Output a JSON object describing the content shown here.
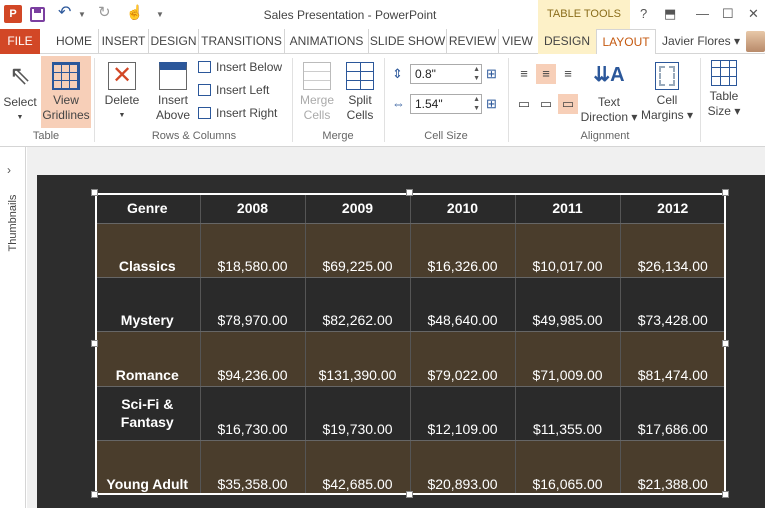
{
  "titlebar": {
    "doc_title": "Sales Presentation - PowerPoint",
    "context_banner": "TABLE TOOLS",
    "help": "?",
    "app_icon": "P"
  },
  "tabs": [
    "FILE",
    "HOME",
    "INSERT",
    "DESIGN",
    "TRANSITIONS",
    "ANIMATIONS",
    "SLIDE SHOW",
    "REVIEW",
    "VIEW"
  ],
  "context_tabs": [
    "DESIGN",
    "LAYOUT"
  ],
  "user": {
    "name": "Javier Flores"
  },
  "ribbon": {
    "table_group": {
      "label": "Table",
      "select": "Select",
      "view_gridlines": [
        "View",
        "Gridlines"
      ]
    },
    "rows_cols_group": {
      "label": "Rows & Columns",
      "delete": "Delete",
      "insert_above": [
        "Insert",
        "Above"
      ],
      "insert_below": "Insert Below",
      "insert_left": "Insert Left",
      "insert_right": "Insert Right"
    },
    "merge_group": {
      "label": "Merge",
      "merge_cells": [
        "Merge",
        "Cells"
      ],
      "split_cells": [
        "Split",
        "Cells"
      ]
    },
    "cell_size_group": {
      "label": "Cell Size",
      "height": "0.8\"",
      "width": "1.54\""
    },
    "alignment_group": {
      "label": "Alignment",
      "text_direction": [
        "Text",
        "Direction"
      ],
      "cell_margins": [
        "Cell",
        "Margins"
      ]
    },
    "table_size": [
      "Table",
      "Size"
    ]
  },
  "thumbnails_label": "Thumbnails",
  "table": {
    "headers": [
      "Genre",
      "2008",
      "2009",
      "2010",
      "2011",
      "2012"
    ],
    "rows": [
      [
        "Classics",
        "$18,580.00",
        "$69,225.00",
        "$16,326.00",
        "$10,017.00",
        "$26,134.00"
      ],
      [
        "Mystery",
        "$78,970.00",
        "$82,262.00",
        "$48,640.00",
        "$49,985.00",
        "$73,428.00"
      ],
      [
        "Romance",
        "$94,236.00",
        "$131,390.00",
        "$79,022.00",
        "$71,009.00",
        "$81,474.00"
      ],
      [
        "Sci-Fi & Fantasy",
        "$16,730.00",
        "$19,730.00",
        "$12,109.00",
        "$11,355.00",
        "$17,686.00"
      ],
      [
        "Young Adult",
        "$35,358.00",
        "$42,685.00",
        "$20,893.00",
        "$16,065.00",
        "$21,388.00"
      ]
    ]
  }
}
